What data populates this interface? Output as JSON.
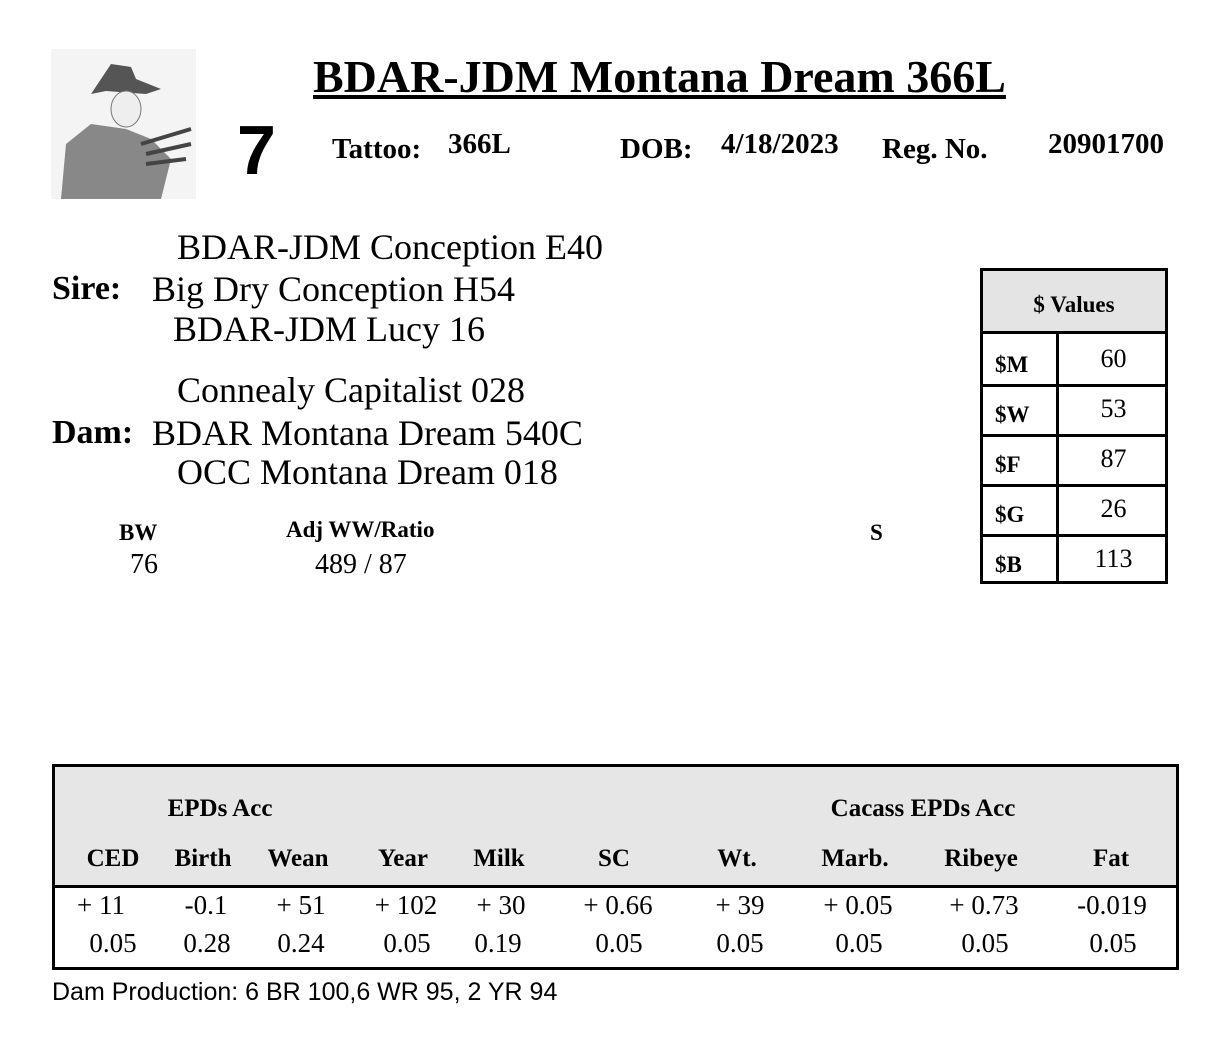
{
  "header": {
    "title": "BDAR-JDM  Montana Dream 366L",
    "lot": "7",
    "tattoo_label": "Tattoo:",
    "tattoo": "366L",
    "dob_label": "DOB:",
    "dob": "4/18/2023",
    "reg_label": "Reg. No.",
    "reg": "20901700"
  },
  "pedigree": {
    "sire_label": "Sire:",
    "sire_sire": "BDAR-JDM Conception E40",
    "sire": "Big Dry Conception H54",
    "sire_dam": "BDAR-JDM Lucy 16",
    "dam_label": "Dam:",
    "dam_sire": "Connealy Capitalist 028",
    "dam": "BDAR  Montana Dream 540C",
    "dam_dam": "OCC Montana Dream 018"
  },
  "perf": {
    "bw_label": "BW",
    "bw": "76",
    "ww_label": "Adj WW/Ratio",
    "ww": "489 / 87",
    "s_label": "S"
  },
  "dollar_values": {
    "title": "$ Values",
    "rows": [
      {
        "k": "$M",
        "v": "60"
      },
      {
        "k": "$W",
        "v": "53"
      },
      {
        "k": "$F",
        "v": "87"
      },
      {
        "k": "$G",
        "v": "26"
      },
      {
        "k": "$B",
        "v": "113"
      }
    ]
  },
  "epd": {
    "group1": "EPDs   Acc",
    "group2": "Cacass EPDs    Acc",
    "columns": [
      "CED",
      "Birth",
      "Wean",
      "Year",
      "Milk",
      "SC",
      "Wt.",
      "Marb.",
      "Ribeye",
      "Fat"
    ],
    "values": [
      "+ 11",
      "-0.1",
      "+ 51",
      "+ 102",
      "+ 30",
      "+ 0.66",
      "+ 39",
      "+ 0.05",
      "+ 0.73",
      "-0.019"
    ],
    "acc": [
      "0.05",
      "0.28",
      "0.24",
      "0.05",
      "0.19",
      "0.05",
      "0.05",
      "0.05",
      "0.05",
      "0.05"
    ]
  },
  "footer": "Dam Production: 6 BR 100,6 WR 95, 2 YR 94"
}
